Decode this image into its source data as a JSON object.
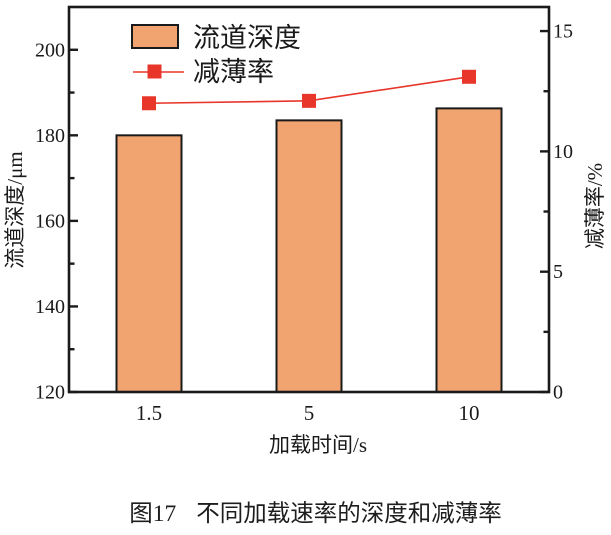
{
  "chart_data": {
    "type": "bar+line dual-axis",
    "categories": [
      "1.5",
      "5",
      "10"
    ],
    "series": [
      {
        "name": "流道深度",
        "type": "bar",
        "axis": "left",
        "values": [
          180.0,
          183.5,
          186.3
        ],
        "color": "#F2A470"
      },
      {
        "name": "减薄率",
        "type": "line",
        "axis": "right",
        "values": [
          12.0,
          12.1,
          13.1
        ],
        "color": "#E8362A",
        "marker": "square"
      }
    ],
    "x_axis": {
      "label": "加载时间/s"
    },
    "left_axis": {
      "label": "流道深度/μm",
      "min": 120,
      "max": 210,
      "major_ticks": [
        120,
        140,
        160,
        180,
        200
      ],
      "minor_ticks": [
        130,
        150,
        170,
        190
      ]
    },
    "right_axis": {
      "label": "减薄率/%",
      "min": 0,
      "max": 16,
      "major_ticks": [
        0,
        5,
        10,
        15
      ],
      "minor_ticks": [
        2.5,
        7.5,
        12.5
      ]
    },
    "legend_position": "top-left-inside",
    "grid": "off"
  },
  "caption": {
    "prefix": "图17",
    "text": "不同加载速率的深度和减薄率"
  },
  "colors": {
    "bar_fill": "#F2A470",
    "line_red": "#E8362A",
    "axis": "#1a1a1a"
  }
}
